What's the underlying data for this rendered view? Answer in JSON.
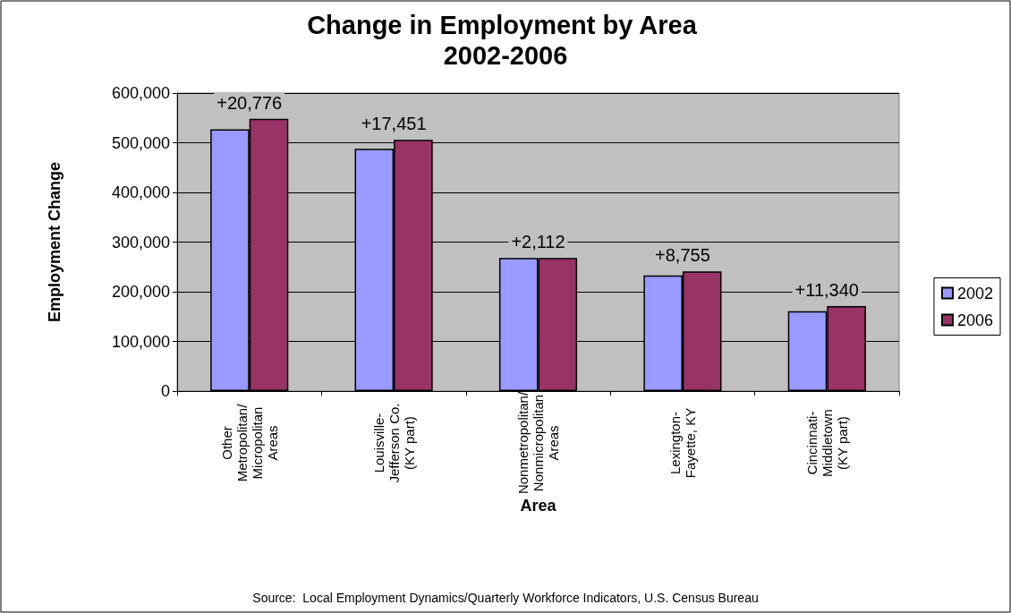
{
  "chart_data": {
    "type": "bar",
    "title": "Change in Employment by Area 2002-2006",
    "xlabel": "Area",
    "ylabel": "Employment Change",
    "categories": [
      "Other\nMetropolitan/\nMicropolitan\nAreas",
      "Louisville-\nJefferson Co.\n(KY part)",
      "Nonmetropolitan/\nNonmicropolitan\nAreas",
      "Lexington-\nFayette, KY",
      "Cincinnati-\nMiddletown\n(KY part)"
    ],
    "series": [
      {
        "name": "2002",
        "color": "#9999ff",
        "values": [
          527000,
          488000,
          268000,
          233000,
          161000
        ]
      },
      {
        "name": "2006",
        "color": "#993366",
        "values": [
          548000,
          506000,
          268000,
          241000,
          171000
        ]
      }
    ],
    "ylim": [
      0,
      600000
    ],
    "yticks": [
      0,
      {
        "value": 100000,
        "label": "100,000"
      },
      {
        "value": 200000,
        "label": "200,000"
      },
      {
        "value": 300000,
        "label": "300,000"
      },
      {
        "value": 400000,
        "label": "400,000"
      },
      {
        "value": 500000,
        "label": "500,000"
      },
      {
        "value": 600000,
        "label": "600,000"
      }
    ],
    "grid": "y",
    "legend": "right",
    "annotations": [
      {
        "text": "+20,776",
        "x": "Other\nMetropolitan/\nMicropolitan\nAreas",
        "y": 548000
      },
      {
        "text": "+17,451",
        "x": "Louisville-\nJefferson Co.\n(KY part)",
        "y": 506000
      },
      {
        "text": "+2,112",
        "x": "Nonmetropolitan/\nNonmicropolitan\nAreas",
        "y": 268000
      },
      {
        "text": "+8,755",
        "x": "Lexington-\nFayette, KY",
        "y": 241000
      },
      {
        "text": "+11,340",
        "x": "Cincinnati-\nMiddletown\n(KY part)",
        "y": 171000
      },
      "Source:  Local Employment Dynamics/Quarterly Workforce Indicators, U.S. Census Bureau"
    ]
  }
}
